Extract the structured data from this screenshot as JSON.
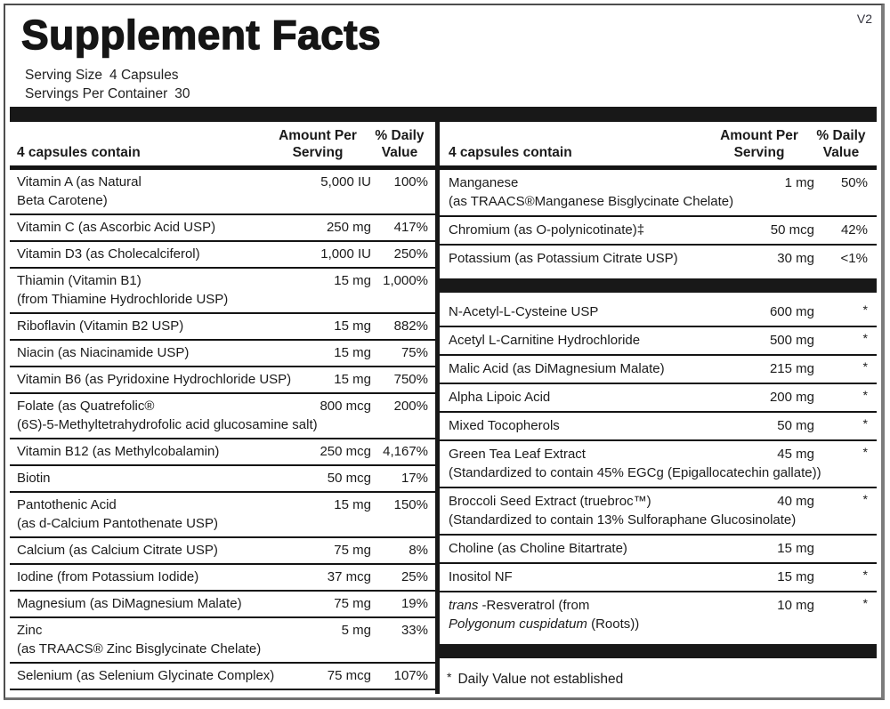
{
  "version": "V2",
  "title": "Supplement Facts",
  "serving": {
    "size_label": "Serving Size",
    "size_value": "4 Capsules",
    "container_label": "Servings Per Container",
    "container_value": "30"
  },
  "colors": {
    "ink": "#1b1b1b",
    "bar": "#181818"
  },
  "panel": {
    "header": {
      "contain": "4 capsules contain",
      "amount": "Amount Per Serving",
      "dv": "% Daily Value"
    },
    "left_rows": [
      {
        "name": "Vitamin A (as Natural",
        "name2": "Beta Carotene)",
        "amount": "5,000 IU",
        "dv": "100%"
      },
      {
        "name": "Vitamin C (as Ascorbic Acid USP)",
        "amount": "250 mg",
        "dv": "417%"
      },
      {
        "name": "Vitamin D3 (as Cholecalciferol)",
        "amount": "1,000 IU",
        "dv": "250%"
      },
      {
        "name": "Thiamin (Vitamin B1)",
        "name2": "(from Thiamine Hydrochloride USP)",
        "amount": "15 mg",
        "dv": "1,000%"
      },
      {
        "name": "Riboflavin (Vitamin B2 USP)",
        "amount": "15 mg",
        "dv": "882%"
      },
      {
        "name": "Niacin (as Niacinamide USP)",
        "amount": "15 mg",
        "dv": "75%"
      },
      {
        "name": "Vitamin B6 (as Pyridoxine Hydrochloride USP)",
        "amount": "15 mg",
        "dv": "750%"
      },
      {
        "name": "Folate (as Quatrefolic®",
        "name2": "(6S)-5-Methyltetrahydrofolic acid glucosamine salt)",
        "amount": "800 mcg",
        "dv": "200%"
      },
      {
        "name": "Vitamin B12 (as Methylcobalamin)",
        "amount": "250 mcg",
        "dv": "4,167%"
      },
      {
        "name": "Biotin",
        "amount": "50 mcg",
        "dv": "17%"
      },
      {
        "name": "Pantothenic Acid",
        "name2": "(as d-Calcium Pantothenate USP)",
        "amount": "15 mg",
        "dv": "150%"
      },
      {
        "name": "Calcium (as Calcium Citrate USP)",
        "amount": "75 mg",
        "dv": "8%"
      },
      {
        "name": "Iodine (from Potassium Iodide)",
        "amount": "37 mcg",
        "dv": "25%"
      },
      {
        "name": "Magnesium (as DiMagnesium Malate)",
        "amount": "75 mg",
        "dv": "19%"
      },
      {
        "name": "Zinc",
        "name2": "(as TRAACS® Zinc Bisglycinate Chelate)",
        "amount": "5 mg",
        "dv": "33%"
      },
      {
        "name": "Selenium (as Selenium Glycinate Complex)",
        "amount": "75 mcg",
        "dv": "107%"
      }
    ],
    "right_rows": [
      {
        "name": "Manganese",
        "name2": "(as TRAACS®Manganese Bisglycinate Chelate)",
        "amount": "1 mg",
        "dv": "50%"
      },
      {
        "name": "Chromium (as O-polynicotinate)‡",
        "amount": "50 mcg",
        "dv": "42%"
      },
      {
        "name": "Potassium (as Potassium Citrate USP)",
        "amount": "30 mg",
        "dv": "<1%"
      },
      {
        "type": "bar"
      },
      {
        "name": "N-Acetyl-L-Cysteine USP",
        "amount": "600 mg",
        "dv": "*"
      },
      {
        "name": "Acetyl L-Carnitine Hydrochloride",
        "amount": "500 mg",
        "dv": "*"
      },
      {
        "name": "Malic Acid (as DiMagnesium Malate)",
        "amount": "215 mg",
        "dv": "*"
      },
      {
        "name": "Alpha Lipoic Acid",
        "amount": "200 mg",
        "dv": "*"
      },
      {
        "name": "Mixed Tocopherols",
        "amount": "50 mg",
        "dv": "*"
      },
      {
        "name": "Green Tea Leaf Extract",
        "name2": "(Standardized to contain 45% EGCg (Epigallocatechin gallate))",
        "amount": "45 mg",
        "dv": "*"
      },
      {
        "name": "Broccoli Seed Extract (truebroc™)",
        "name2": "(Standardized to contain 13% Sulforaphane Glucosinolate)",
        "amount": "40 mg",
        "dv": "*"
      },
      {
        "name": "Choline (as Choline Bitartrate)",
        "amount": "15 mg",
        "dv": ""
      },
      {
        "name": "Inositol NF",
        "amount": "15 mg",
        "dv": "*"
      },
      {
        "name_parts": [
          {
            "t": "trans",
            "i": true
          },
          {
            "t": " -Resveratrol (from"
          }
        ],
        "name2_parts": [
          {
            "t": "Polygonum cuspidatum",
            "i": true
          },
          {
            "t": " (Roots))"
          }
        ],
        "amount": "10 mg",
        "dv": "*"
      },
      {
        "type": "bar"
      }
    ],
    "footnote": {
      "marker": "*",
      "text": "Daily Value not established"
    }
  }
}
